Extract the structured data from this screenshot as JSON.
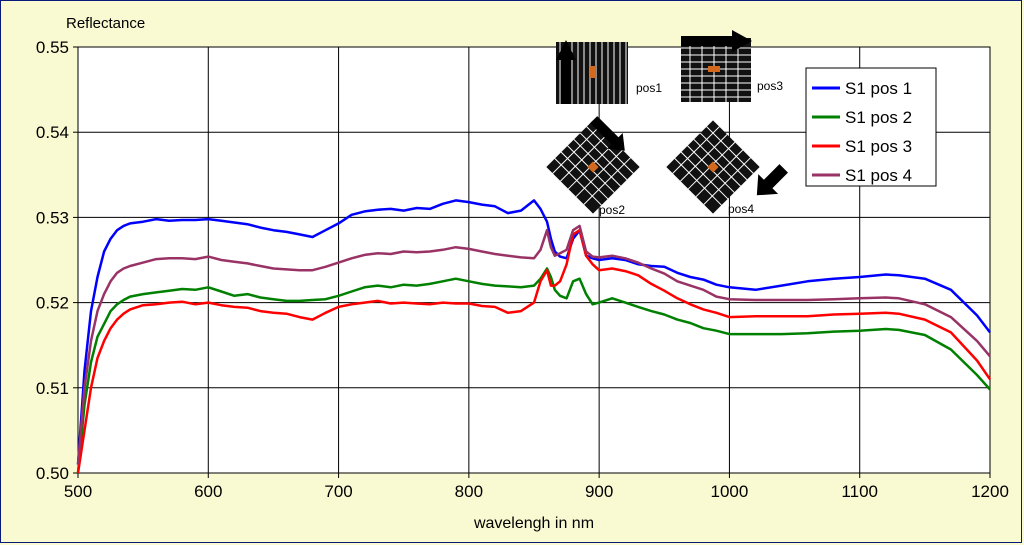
{
  "chart_data": {
    "type": "line",
    "ylabel": "Reflectance",
    "xlabel": "wavelengh in nm",
    "xlim": [
      500,
      1200
    ],
    "ylim": [
      0.5,
      0.55
    ],
    "xticks": [
      "500",
      "600",
      "700",
      "800",
      "900",
      "1000",
      "1100",
      "1200"
    ],
    "yticks": [
      "0.50",
      "0.51",
      "0.52",
      "0.53",
      "0.54",
      "0.55"
    ],
    "grid": true,
    "legend_position": "top-right",
    "series": [
      {
        "name": "S1 pos 1",
        "color": "#0000ff",
        "x": [
          500,
          505,
          510,
          515,
          520,
          525,
          530,
          535,
          540,
          550,
          560,
          570,
          580,
          590,
          600,
          610,
          620,
          630,
          640,
          650,
          660,
          670,
          680,
          690,
          700,
          710,
          720,
          730,
          740,
          750,
          760,
          770,
          780,
          790,
          800,
          810,
          820,
          830,
          840,
          850,
          855,
          860,
          863,
          866,
          870,
          875,
          880,
          885,
          890,
          895,
          900,
          910,
          920,
          930,
          940,
          950,
          960,
          970,
          980,
          990,
          1000,
          1020,
          1040,
          1060,
          1080,
          1100,
          1120,
          1130,
          1150,
          1170,
          1190,
          1200
        ],
        "y": [
          0.501,
          0.512,
          0.519,
          0.523,
          0.526,
          0.5275,
          0.5285,
          0.529,
          0.5293,
          0.5295,
          0.5298,
          0.5296,
          0.5297,
          0.5297,
          0.5298,
          0.5296,
          0.5294,
          0.5292,
          0.5288,
          0.5285,
          0.5283,
          0.528,
          0.5277,
          0.5285,
          0.5293,
          0.5303,
          0.5307,
          0.5309,
          0.531,
          0.5308,
          0.5311,
          0.531,
          0.5316,
          0.532,
          0.5318,
          0.5315,
          0.5313,
          0.5305,
          0.5308,
          0.532,
          0.531,
          0.5295,
          0.5275,
          0.526,
          0.5254,
          0.5252,
          0.5275,
          0.5285,
          0.5255,
          0.5252,
          0.525,
          0.5252,
          0.525,
          0.5245,
          0.5243,
          0.5242,
          0.5235,
          0.523,
          0.5227,
          0.5221,
          0.5218,
          0.5215,
          0.522,
          0.5225,
          0.5228,
          0.523,
          0.5233,
          0.5232,
          0.5228,
          0.5215,
          0.5185,
          0.5165
        ]
      },
      {
        "name": "S1 pos 2",
        "color": "#008000",
        "x": [
          500,
          505,
          510,
          515,
          520,
          525,
          530,
          535,
          540,
          550,
          560,
          570,
          580,
          590,
          600,
          610,
          620,
          630,
          640,
          650,
          660,
          670,
          680,
          690,
          700,
          710,
          720,
          730,
          740,
          750,
          760,
          770,
          780,
          790,
          800,
          810,
          820,
          830,
          840,
          850,
          855,
          860,
          863,
          866,
          870,
          875,
          880,
          885,
          890,
          895,
          900,
          910,
          920,
          930,
          940,
          950,
          960,
          970,
          980,
          990,
          1000,
          1020,
          1040,
          1060,
          1080,
          1100,
          1120,
          1130,
          1150,
          1170,
          1190,
          1200
        ],
        "y": [
          0.5,
          0.508,
          0.513,
          0.516,
          0.5175,
          0.519,
          0.5198,
          0.5203,
          0.5207,
          0.521,
          0.5212,
          0.5214,
          0.5216,
          0.5215,
          0.5218,
          0.5213,
          0.5208,
          0.521,
          0.5206,
          0.5204,
          0.5202,
          0.5202,
          0.5203,
          0.5204,
          0.5208,
          0.5213,
          0.5218,
          0.522,
          0.5218,
          0.5221,
          0.522,
          0.5222,
          0.5225,
          0.5228,
          0.5225,
          0.5222,
          0.522,
          0.5219,
          0.5218,
          0.522,
          0.5228,
          0.524,
          0.523,
          0.5215,
          0.5208,
          0.5205,
          0.5225,
          0.5228,
          0.521,
          0.5198,
          0.52,
          0.5205,
          0.52,
          0.5195,
          0.519,
          0.5186,
          0.518,
          0.5176,
          0.517,
          0.5167,
          0.5163,
          0.5163,
          0.5163,
          0.5164,
          0.5166,
          0.5167,
          0.5169,
          0.5168,
          0.5162,
          0.5145,
          0.5115,
          0.5098
        ]
      },
      {
        "name": "S1 pos 3",
        "color": "#ff0000",
        "x": [
          500,
          505,
          510,
          515,
          520,
          525,
          530,
          535,
          540,
          550,
          560,
          570,
          580,
          590,
          600,
          610,
          620,
          630,
          640,
          650,
          660,
          670,
          680,
          690,
          700,
          710,
          720,
          730,
          740,
          750,
          760,
          770,
          780,
          790,
          800,
          810,
          820,
          830,
          840,
          850,
          855,
          860,
          863,
          866,
          870,
          875,
          880,
          885,
          890,
          895,
          900,
          910,
          920,
          930,
          940,
          950,
          960,
          970,
          980,
          990,
          1000,
          1020,
          1040,
          1060,
          1080,
          1100,
          1120,
          1130,
          1150,
          1170,
          1190,
          1200
        ],
        "y": [
          0.5,
          0.505,
          0.51,
          0.5135,
          0.5155,
          0.517,
          0.518,
          0.5187,
          0.5192,
          0.5197,
          0.5198,
          0.52,
          0.5201,
          0.5198,
          0.52,
          0.5197,
          0.5195,
          0.5194,
          0.519,
          0.5188,
          0.5187,
          0.5183,
          0.518,
          0.5188,
          0.5195,
          0.5198,
          0.52,
          0.5202,
          0.5199,
          0.52,
          0.5199,
          0.5198,
          0.52,
          0.5199,
          0.5199,
          0.5196,
          0.5195,
          0.5188,
          0.519,
          0.52,
          0.5225,
          0.5238,
          0.522,
          0.522,
          0.5225,
          0.5245,
          0.528,
          0.5285,
          0.5255,
          0.5245,
          0.5238,
          0.524,
          0.5237,
          0.5232,
          0.5222,
          0.5214,
          0.5205,
          0.5198,
          0.5192,
          0.5188,
          0.5183,
          0.5184,
          0.5184,
          0.5184,
          0.5186,
          0.5187,
          0.5188,
          0.5187,
          0.518,
          0.5165,
          0.5132,
          0.511
        ]
      },
      {
        "name": "S1 pos 4",
        "color": "#993366",
        "x": [
          500,
          505,
          510,
          515,
          520,
          525,
          530,
          535,
          540,
          550,
          560,
          570,
          580,
          590,
          600,
          610,
          620,
          630,
          640,
          650,
          660,
          670,
          680,
          690,
          700,
          710,
          720,
          730,
          740,
          750,
          760,
          770,
          780,
          790,
          800,
          810,
          820,
          830,
          840,
          850,
          855,
          860,
          863,
          866,
          870,
          875,
          880,
          885,
          890,
          895,
          900,
          910,
          920,
          930,
          940,
          950,
          960,
          970,
          980,
          990,
          1000,
          1020,
          1040,
          1060,
          1080,
          1100,
          1120,
          1130,
          1150,
          1170,
          1190,
          1200
        ],
        "y": [
          0.501,
          0.51,
          0.5155,
          0.519,
          0.521,
          0.5225,
          0.5235,
          0.524,
          0.5243,
          0.5247,
          0.5251,
          0.5252,
          0.5252,
          0.5251,
          0.5254,
          0.525,
          0.5248,
          0.5246,
          0.5243,
          0.524,
          0.5239,
          0.5238,
          0.5238,
          0.5242,
          0.5247,
          0.5252,
          0.5256,
          0.5258,
          0.5257,
          0.526,
          0.5259,
          0.526,
          0.5262,
          0.5265,
          0.5263,
          0.526,
          0.5257,
          0.5255,
          0.5253,
          0.5252,
          0.5262,
          0.5285,
          0.5265,
          0.5255,
          0.5258,
          0.5262,
          0.5285,
          0.529,
          0.526,
          0.5254,
          0.5253,
          0.5255,
          0.5252,
          0.5247,
          0.524,
          0.5234,
          0.5225,
          0.522,
          0.5215,
          0.5207,
          0.5204,
          0.5203,
          0.5203,
          0.5203,
          0.5204,
          0.5205,
          0.5206,
          0.5205,
          0.5198,
          0.5183,
          0.5155,
          0.5137
        ]
      }
    ],
    "annotations": [
      "pos1",
      "pos3",
      "pos2",
      "pos4"
    ]
  },
  "colors": {
    "background": "#fafad2",
    "plot_area": "#ffffff",
    "frame": "#0a1a7a"
  }
}
